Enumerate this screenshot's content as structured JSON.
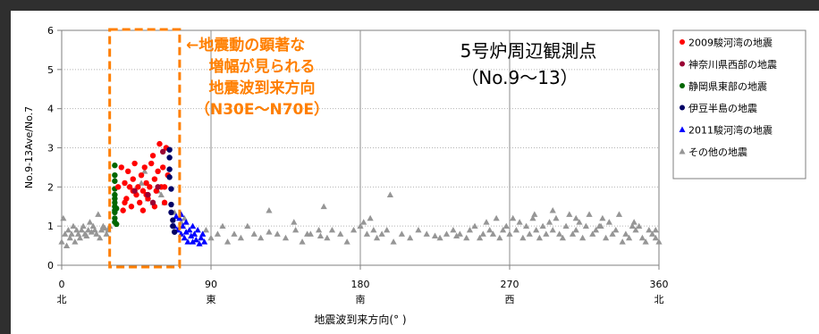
{
  "chart_data": {
    "type": "scatter",
    "xlabel": "地震波到来方向(° )",
    "ylabel": "No.9-13Ave/No.7",
    "xlim": [
      0,
      360
    ],
    "ylim": [
      0,
      6
    ],
    "x_ticks": [
      0,
      90,
      180,
      270,
      360
    ],
    "x_tick_labels": [
      "0",
      "90",
      "180",
      "270",
      "360"
    ],
    "x_direction_labels": [
      "北",
      "東",
      "南",
      "西",
      "北"
    ],
    "y_ticks": [
      0,
      1,
      2,
      3,
      4,
      5,
      6
    ],
    "y_tick_labels": [
      "0",
      "1",
      "2",
      "3",
      "4",
      "5",
      "6"
    ],
    "grid": "vertical",
    "legend_position": "top-right",
    "title_lines": [
      "5号炉周辺観測点",
      "（No.9～13）"
    ],
    "annotation": {
      "lines": [
        "←地震動の顕著な",
        "増幅が見られる",
        "地震波到来方向",
        "（N30E～N70E）"
      ],
      "color": "#ff7f00",
      "range_x": [
        30,
        70
      ],
      "range_y": [
        0,
        6
      ]
    },
    "series": [
      {
        "name": "2009駿河湾の地震",
        "marker": "circle",
        "color": "#ff0000",
        "points": [
          [
            34,
            2.0
          ],
          [
            36,
            2.5
          ],
          [
            37,
            1.4
          ],
          [
            38,
            2.1
          ],
          [
            39,
            1.7
          ],
          [
            40,
            2.4
          ],
          [
            41,
            2.0
          ],
          [
            42,
            1.5
          ],
          [
            43,
            2.2
          ],
          [
            44,
            2.6
          ],
          [
            45,
            1.8
          ],
          [
            46,
            2.0
          ],
          [
            47,
            1.6
          ],
          [
            48,
            2.3
          ],
          [
            49,
            1.9
          ],
          [
            50,
            2.5
          ],
          [
            51,
            2.1
          ],
          [
            52,
            1.7
          ],
          [
            53,
            2.0
          ],
          [
            54,
            2.6
          ],
          [
            55,
            2.8
          ],
          [
            56,
            2.2
          ],
          [
            57,
            1.9
          ],
          [
            58,
            2.4
          ],
          [
            59,
            3.1
          ],
          [
            60,
            2.0
          ],
          [
            61,
            2.5
          ],
          [
            62,
            1.6
          ],
          [
            63,
            3.0
          ],
          [
            64,
            2.3
          ],
          [
            56,
            1.5
          ],
          [
            49,
            1.4
          ],
          [
            43,
            1.9
          ],
          [
            51,
            1.8
          ],
          [
            38,
            1.6
          ],
          [
            62,
            2.0
          ]
        ]
      },
      {
        "name": "神奈川県西部の地震",
        "marker": "circle",
        "color": "#990033",
        "points": [
          [
            44,
            1.9
          ],
          [
            52,
            1.8
          ],
          [
            58,
            2.0
          ],
          [
            61,
            2.9
          ],
          [
            55,
            1.6
          ]
        ]
      },
      {
        "name": "静岡県東部の地震",
        "marker": "circle",
        "color": "#006600",
        "points": [
          [
            32,
            2.55
          ],
          [
            32,
            2.3
          ],
          [
            32,
            2.15
          ],
          [
            32,
            1.95
          ],
          [
            32,
            1.8
          ],
          [
            32,
            1.7
          ],
          [
            32,
            1.6
          ],
          [
            32,
            1.5
          ],
          [
            32,
            1.4
          ],
          [
            32,
            1.35
          ],
          [
            32,
            1.2
          ],
          [
            32,
            1.1
          ],
          [
            33,
            1.05
          ],
          [
            33,
            1.45
          ]
        ]
      },
      {
        "name": "伊豆半島の地震",
        "marker": "circle",
        "color": "#000066",
        "points": [
          [
            65,
            2.95
          ],
          [
            65,
            2.75
          ],
          [
            65,
            2.45
          ],
          [
            65,
            2.25
          ],
          [
            66,
            1.55
          ],
          [
            66,
            1.35
          ],
          [
            67,
            1.15
          ],
          [
            67,
            1.0
          ],
          [
            68,
            0.85
          ],
          [
            66,
            1.95
          ]
        ]
      },
      {
        "name": "2011駿河湾の地震",
        "marker": "triangle",
        "color": "#0000ff",
        "points": [
          [
            68,
            1.0
          ],
          [
            70,
            0.9
          ],
          [
            71,
            1.2
          ],
          [
            72,
            0.8
          ],
          [
            73,
            1.0
          ],
          [
            74,
            0.7
          ],
          [
            75,
            0.85
          ],
          [
            76,
            0.6
          ],
          [
            77,
            0.9
          ],
          [
            78,
            0.75
          ],
          [
            79,
            0.6
          ],
          [
            80,
            0.8
          ],
          [
            81,
            0.65
          ],
          [
            82,
            0.9
          ],
          [
            83,
            0.55
          ],
          [
            84,
            0.7
          ],
          [
            85,
            0.8
          ],
          [
            86,
            0.6
          ],
          [
            75,
            1.1
          ],
          [
            72,
            1.3
          ],
          [
            79,
            1.0
          ],
          [
            69,
            1.25
          ]
        ]
      },
      {
        "name": "その他の地震",
        "marker": "triangle",
        "color": "#969696",
        "points": [
          [
            0,
            0.6
          ],
          [
            1,
            1.2
          ],
          [
            2,
            0.8
          ],
          [
            3,
            0.5
          ],
          [
            4,
            0.9
          ],
          [
            5,
            0.7
          ],
          [
            6,
            0.8
          ],
          [
            7,
            1.0
          ],
          [
            8,
            0.6
          ],
          [
            9,
            0.9
          ],
          [
            10,
            0.8
          ],
          [
            11,
            0.7
          ],
          [
            12,
            0.9
          ],
          [
            13,
            1.0
          ],
          [
            14,
            0.8
          ],
          [
            15,
            0.75
          ],
          [
            16,
            0.9
          ],
          [
            17,
            1.1
          ],
          [
            18,
            0.85
          ],
          [
            19,
            1.0
          ],
          [
            20,
            0.9
          ],
          [
            21,
            0.8
          ],
          [
            22,
            1.3
          ],
          [
            23,
            0.7
          ],
          [
            24,
            0.9
          ],
          [
            25,
            1.0
          ],
          [
            26,
            0.95
          ],
          [
            27,
            0.8
          ],
          [
            28,
            0.9
          ],
          [
            29,
            1.0
          ],
          [
            87,
            0.9
          ],
          [
            90,
            0.7
          ],
          [
            94,
            0.8
          ],
          [
            97,
            1.0
          ],
          [
            100,
            0.6
          ],
          [
            104,
            0.8
          ],
          [
            108,
            0.7
          ],
          [
            112,
            1.0
          ],
          [
            116,
            0.8
          ],
          [
            120,
            0.7
          ],
          [
            125,
            1.4
          ],
          [
            130,
            0.8
          ],
          [
            135,
            0.7
          ],
          [
            141,
            0.9
          ],
          [
            145,
            0.6
          ],
          [
            150,
            0.8
          ],
          [
            156,
            0.75
          ],
          [
            160,
            0.7
          ],
          [
            163,
            0.9
          ],
          [
            168,
            0.8
          ],
          [
            172,
            0.6
          ],
          [
            176,
            0.9
          ],
          [
            180,
            1.0
          ],
          [
            182,
            1.1
          ],
          [
            184,
            0.8
          ],
          [
            186,
            1.2
          ],
          [
            188,
            0.9
          ],
          [
            190,
            0.7
          ],
          [
            193,
            0.8
          ],
          [
            196,
            0.9
          ],
          [
            200,
            0.6
          ],
          [
            205,
            0.8
          ],
          [
            210,
            0.7
          ],
          [
            215,
            0.9
          ],
          [
            220,
            0.8
          ],
          [
            225,
            0.75
          ],
          [
            228,
            0.7
          ],
          [
            232,
            0.8
          ],
          [
            236,
            0.9
          ],
          [
            240,
            0.8
          ],
          [
            244,
            0.7
          ],
          [
            246,
            0.9
          ],
          [
            249,
            1.0
          ],
          [
            252,
            0.7
          ],
          [
            254,
            0.8
          ],
          [
            256,
            1.1
          ],
          [
            258,
            0.9
          ],
          [
            260,
            0.8
          ],
          [
            262,
            1.2
          ],
          [
            264,
            0.7
          ],
          [
            266,
            0.9
          ],
          [
            268,
            1.0
          ],
          [
            270,
            0.8
          ],
          [
            272,
            1.2
          ],
          [
            274,
            0.9
          ],
          [
            276,
            1.1
          ],
          [
            278,
            0.7
          ],
          [
            280,
            1.0
          ],
          [
            282,
            0.8
          ],
          [
            284,
            1.2
          ],
          [
            286,
            0.9
          ],
          [
            288,
            0.7
          ],
          [
            290,
            1.0
          ],
          [
            292,
            0.8
          ],
          [
            294,
            1.1
          ],
          [
            296,
            0.9
          ],
          [
            298,
            1.2
          ],
          [
            300,
            0.8
          ],
          [
            302,
            0.7
          ],
          [
            304,
            1.0
          ],
          [
            306,
            1.3
          ],
          [
            308,
            0.8
          ],
          [
            310,
            0.9
          ],
          [
            312,
            1.1
          ],
          [
            314,
            0.7
          ],
          [
            316,
            1.0
          ],
          [
            318,
            1.3
          ],
          [
            320,
            0.8
          ],
          [
            322,
            0.9
          ],
          [
            324,
            1.0
          ],
          [
            326,
            1.2
          ],
          [
            328,
            0.7
          ],
          [
            330,
            1.1
          ],
          [
            332,
            0.8
          ],
          [
            334,
            0.9
          ],
          [
            336,
            1.3
          ],
          [
            338,
            0.6
          ],
          [
            340,
            0.8
          ],
          [
            342,
            0.7
          ],
          [
            344,
            1.0
          ],
          [
            346,
            0.9
          ],
          [
            348,
            1.0
          ],
          [
            350,
            0.7
          ],
          [
            352,
            0.6
          ],
          [
            354,
            0.9
          ],
          [
            356,
            0.8
          ],
          [
            358,
            0.7
          ],
          [
            360,
            0.6
          ],
          [
            50,
            2.4
          ],
          [
            52,
            1.7
          ],
          [
            55,
            1.6
          ],
          [
            58,
            1.9
          ],
          [
            48,
            2.1
          ],
          [
            60,
            1.8
          ],
          [
            62,
            1.6
          ],
          [
            68,
            1.35
          ],
          [
            72,
            1.1
          ],
          [
            74,
            1.2
          ],
          [
            125,
            0.85
          ],
          [
            140,
            1.1
          ],
          [
            148,
            0.8
          ],
          [
            155,
            0.9
          ],
          [
            158,
            1.5
          ],
          [
            198,
            1.8
          ],
          [
            238,
            0.75
          ],
          [
            285,
            1.3
          ],
          [
            296,
            1.4
          ],
          [
            310,
            1.2
          ],
          [
            325,
            1.0
          ],
          [
            345,
            1.1
          ],
          [
            358,
            0.9
          ]
        ]
      }
    ]
  }
}
